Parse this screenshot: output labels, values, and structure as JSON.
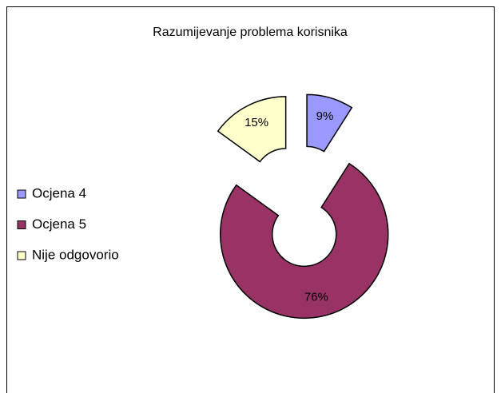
{
  "chart_data": {
    "type": "pie",
    "style": "exploded-donut",
    "title": "Razumijevanje problema korisnika",
    "categories": [
      "Ocjena 4",
      "Ocjena 5",
      "Nije odgovorio"
    ],
    "values": [
      9,
      76,
      15
    ],
    "value_labels": [
      "9%",
      "76%",
      "15%"
    ],
    "colors": [
      "#9999ff",
      "#993366",
      "#ffffcc"
    ],
    "legend": "left"
  }
}
